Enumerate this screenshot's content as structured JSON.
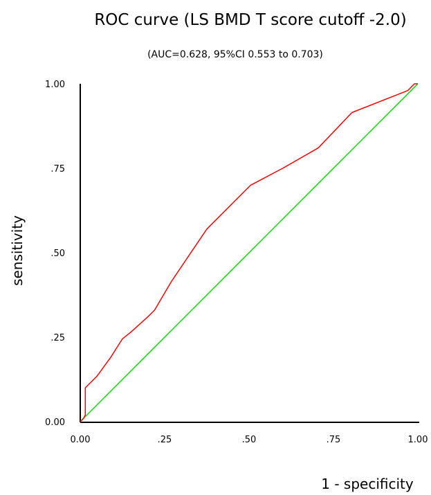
{
  "chart_data": {
    "type": "line",
    "title": "ROC curve (LS BMD T score cutoff -2.0)",
    "subtitle": "(AUC=0.628, 95%CI 0.553 to 0.703)",
    "xlabel": "1 - specificity",
    "ylabel": "sensitivity",
    "xlim": [
      0,
      1
    ],
    "ylim": [
      0,
      1
    ],
    "x_ticks": [
      {
        "value": 0,
        "label": "0.00"
      },
      {
        "value": 0.25,
        "label": ".25"
      },
      {
        "value": 0.5,
        "label": ".50"
      },
      {
        "value": 0.75,
        "label": ".75"
      },
      {
        "value": 1,
        "label": "1.00"
      }
    ],
    "y_ticks": [
      {
        "value": 0,
        "label": "0.00"
      },
      {
        "value": 0.25,
        "label": ".25"
      },
      {
        "value": 0.5,
        "label": ".50"
      },
      {
        "value": 0.75,
        "label": ".75"
      },
      {
        "value": 1,
        "label": "1.00"
      }
    ],
    "grid": false,
    "legend": "none",
    "series": [
      {
        "color": "#ff0000",
        "points": [
          [
            0.0,
            0.0
          ],
          [
            0.01,
            0.01
          ],
          [
            0.015,
            0.02
          ],
          [
            0.015,
            0.1
          ],
          [
            0.03,
            0.115
          ],
          [
            0.05,
            0.135
          ],
          [
            0.09,
            0.19
          ],
          [
            0.125,
            0.245
          ],
          [
            0.15,
            0.265
          ],
          [
            0.2,
            0.31
          ],
          [
            0.22,
            0.33
          ],
          [
            0.27,
            0.415
          ],
          [
            0.375,
            0.57
          ],
          [
            0.505,
            0.7
          ],
          [
            0.6,
            0.75
          ],
          [
            0.705,
            0.81
          ],
          [
            0.805,
            0.915
          ],
          [
            0.97,
            0.98
          ],
          [
            0.99,
            1.0
          ],
          [
            1.0,
            1.0
          ]
        ]
      },
      {
        "color": "#00e000",
        "points": [
          [
            0.0,
            0.0
          ],
          [
            1.0,
            1.0
          ]
        ]
      }
    ]
  }
}
